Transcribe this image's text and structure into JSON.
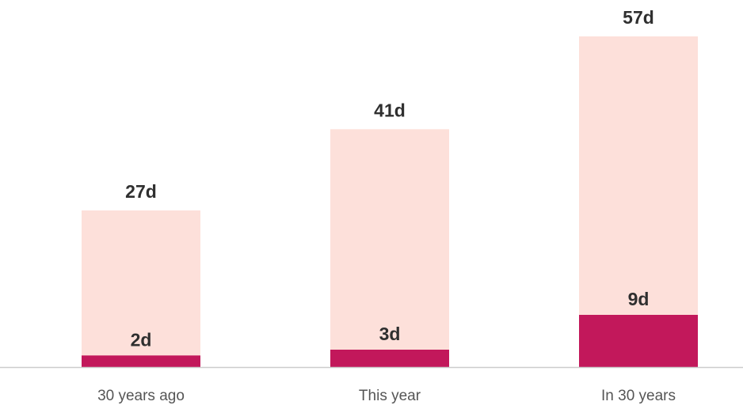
{
  "chart_data": {
    "type": "bar",
    "stacked": false,
    "overlapping": true,
    "categories": [
      "30 years ago",
      "This year",
      "In 30 years"
    ],
    "series": [
      {
        "values": [
          27,
          41,
          57
        ],
        "labels": [
          "27d",
          "41d",
          "57d"
        ],
        "color": "#fde0da"
      },
      {
        "values": [
          2,
          3,
          9
        ],
        "labels": [
          "2d",
          "3d",
          "9d"
        ],
        "color": "#c2185b"
      }
    ],
    "ylim": [
      0,
      57
    ],
    "grid": false,
    "axis_color": "#cccccc"
  }
}
